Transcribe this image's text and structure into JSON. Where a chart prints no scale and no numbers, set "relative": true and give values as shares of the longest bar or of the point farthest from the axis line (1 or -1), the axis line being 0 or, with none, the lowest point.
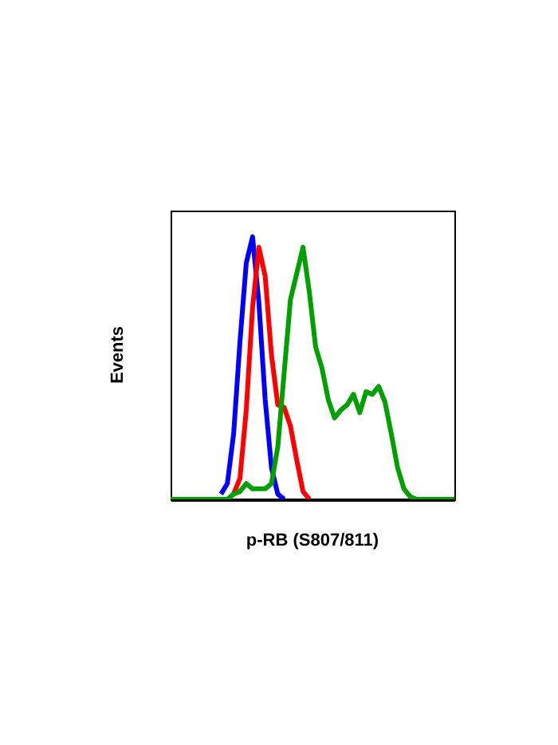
{
  "chart_data": {
    "type": "line",
    "relative": true,
    "xlabel": "p-RB (S807/811)",
    "ylabel": "Events",
    "grid": false,
    "tick_labels": false,
    "marker": "none",
    "line_style": "solid",
    "categories": [
      null,
      null,
      null,
      null,
      null,
      null,
      null,
      null,
      null,
      null,
      null,
      null,
      null,
      null,
      null,
      null,
      null,
      null,
      null,
      null,
      null,
      null,
      null,
      null,
      null,
      null,
      null,
      null,
      null,
      null,
      null,
      null,
      null,
      null,
      null,
      null,
      null,
      null,
      null,
      null,
      null,
      null,
      null,
      null,
      null,
      null
    ],
    "series": [
      {
        "color": "#0000ff",
        "values": [
          null,
          null,
          null,
          null,
          null,
          null,
          null,
          null,
          0.02,
          0.06,
          0.25,
          0.6,
          0.9,
          1,
          0.75,
          0.38,
          0.12,
          0.02,
          0,
          null,
          null,
          null,
          null,
          null,
          null,
          null,
          null,
          null,
          null,
          null,
          null,
          null,
          null,
          null,
          null,
          null,
          null,
          null,
          null,
          null,
          null,
          null,
          null,
          null,
          null,
          null
        ]
      },
      {
        "color": "#ff0000",
        "values": [
          null,
          null,
          null,
          null,
          null,
          null,
          null,
          null,
          null,
          null,
          0.02,
          0.08,
          0.34,
          0.73,
          0.96,
          0.85,
          0.55,
          0.36,
          0.35,
          0.28,
          0.15,
          0.03,
          0,
          null,
          null,
          null,
          null,
          null,
          null,
          null,
          null,
          null,
          null,
          null,
          null,
          null,
          null,
          null,
          null,
          null,
          null,
          null,
          null,
          null,
          null,
          null
        ]
      },
      {
        "color": "#00a000",
        "values": [
          0,
          0,
          0,
          0,
          0,
          0,
          0,
          0,
          0,
          0,
          0.02,
          0.03,
          0.06,
          0.04,
          0.04,
          0.04,
          0.06,
          0.2,
          0.48,
          0.76,
          0.86,
          0.96,
          0.79,
          0.58,
          0.5,
          0.38,
          0.31,
          0.34,
          0.36,
          0.4,
          0.33,
          0.41,
          0.4,
          0.43,
          0.37,
          0.25,
          0.12,
          0.04,
          0.01,
          0,
          0,
          0,
          0,
          0,
          0,
          0
        ]
      }
    ]
  }
}
